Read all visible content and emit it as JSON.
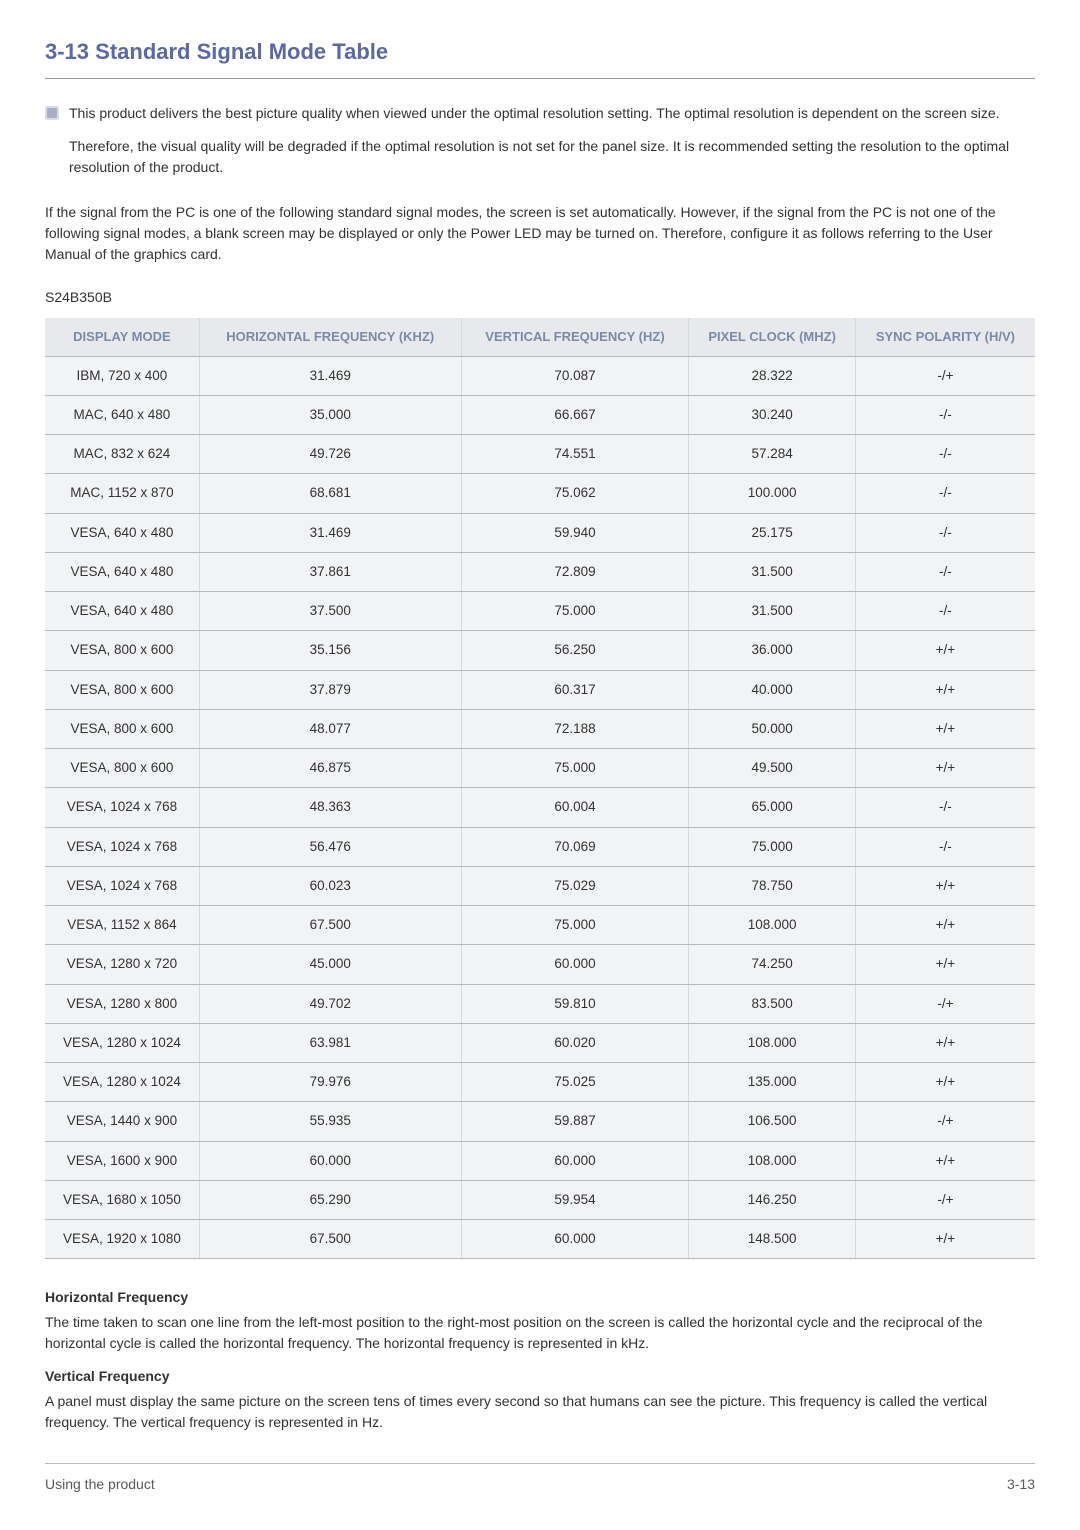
{
  "heading": "3-13  Standard Signal Mode Table",
  "notice_icon": "info-icon",
  "notice_paragraph_1": "This product delivers the best picture quality when viewed under the optimal resolution setting. The optimal resolution is dependent on the screen size.",
  "notice_paragraph_2": "Therefore, the visual quality will be degraded if the optimal resolution is not set for the panel size. It is recommended setting the resolution to the optimal resolution of the product.",
  "signal_paragraph": "If the signal from the PC is one of the following standard signal modes, the screen is set automatically. However, if the signal from the PC is not one of the following signal modes, a blank screen may be displayed or only the Power LED may be turned on. Therefore, configure it as follows referring to the User Manual of the graphics card.",
  "model": "S24B350B",
  "table": {
    "columns": [
      "DISPLAY MODE",
      "HORIZONTAL FREQUENCY (KHZ)",
      "VERTICAL FREQUENCY (HZ)",
      "PIXEL CLOCK (MHZ)",
      "SYNC POLARITY (H/V)"
    ],
    "rows": [
      [
        "IBM, 720 x 400",
        "31.469",
        "70.087",
        "28.322",
        "-/+"
      ],
      [
        "MAC, 640 x 480",
        "35.000",
        "66.667",
        "30.240",
        "-/-"
      ],
      [
        "MAC, 832 x 624",
        "49.726",
        "74.551",
        "57.284",
        "-/-"
      ],
      [
        "MAC, 1152 x 870",
        "68.681",
        "75.062",
        "100.000",
        "-/-"
      ],
      [
        "VESA, 640 x 480",
        "31.469",
        "59.940",
        "25.175",
        "-/-"
      ],
      [
        "VESA, 640 x 480",
        "37.861",
        "72.809",
        "31.500",
        "-/-"
      ],
      [
        "VESA, 640 x 480",
        "37.500",
        "75.000",
        "31.500",
        "-/-"
      ],
      [
        "VESA, 800 x 600",
        "35.156",
        "56.250",
        "36.000",
        "+/+"
      ],
      [
        "VESA, 800 x 600",
        "37.879",
        "60.317",
        "40.000",
        "+/+"
      ],
      [
        "VESA, 800 x 600",
        "48.077",
        "72.188",
        "50.000",
        "+/+"
      ],
      [
        "VESA, 800 x 600",
        "46.875",
        "75.000",
        "49.500",
        "+/+"
      ],
      [
        "VESA, 1024 x 768",
        "48.363",
        "60.004",
        "65.000",
        "-/-"
      ],
      [
        "VESA, 1024 x 768",
        "56.476",
        "70.069",
        "75.000",
        "-/-"
      ],
      [
        "VESA, 1024 x 768",
        "60.023",
        "75.029",
        "78.750",
        "+/+"
      ],
      [
        "VESA, 1152 x 864",
        "67.500",
        "75.000",
        "108.000",
        "+/+"
      ],
      [
        "VESA, 1280 x 720",
        "45.000",
        "60.000",
        "74.250",
        "+/+"
      ],
      [
        "VESA, 1280 x 800",
        "49.702",
        "59.810",
        "83.500",
        "-/+"
      ],
      [
        "VESA, 1280 x 1024",
        "63.981",
        "60.020",
        "108.000",
        "+/+"
      ],
      [
        "VESA, 1280 x 1024",
        "79.976",
        "75.025",
        "135.000",
        "+/+"
      ],
      [
        "VESA, 1440 x 900",
        "55.935",
        "59.887",
        "106.500",
        "-/+"
      ],
      [
        "VESA, 1600 x 900",
        "60.000",
        "60.000",
        "108.000",
        "+/+"
      ],
      [
        "VESA, 1680 x 1050",
        "65.290",
        "59.954",
        "146.250",
        "-/+"
      ],
      [
        "VESA, 1920 x 1080",
        "67.500",
        "60.000",
        "148.500",
        "+/+"
      ]
    ]
  },
  "defs": {
    "h_term": "Horizontal Frequency",
    "h_text": "The time taken to scan one line from the left-most position to the right-most position on the screen is called the horizontal cycle and the reciprocal of the horizontal cycle is called the horizontal frequency. The horizontal frequency is represented in kHz.",
    "v_term": "Vertical Frequency",
    "v_text": "A panel must display the same picture on the screen tens of times every second so that humans can see the picture. This frequency is called the vertical frequency. The vertical frequency is represented in Hz."
  },
  "footer_left": "Using the product",
  "footer_right": "3-13",
  "colors": {
    "heading": "#5a6aa5",
    "th_bg": "#e8e9ec",
    "th_color": "#7a8aaa",
    "td_bg": "#f2f3f5",
    "border": "#b8b8b8"
  }
}
